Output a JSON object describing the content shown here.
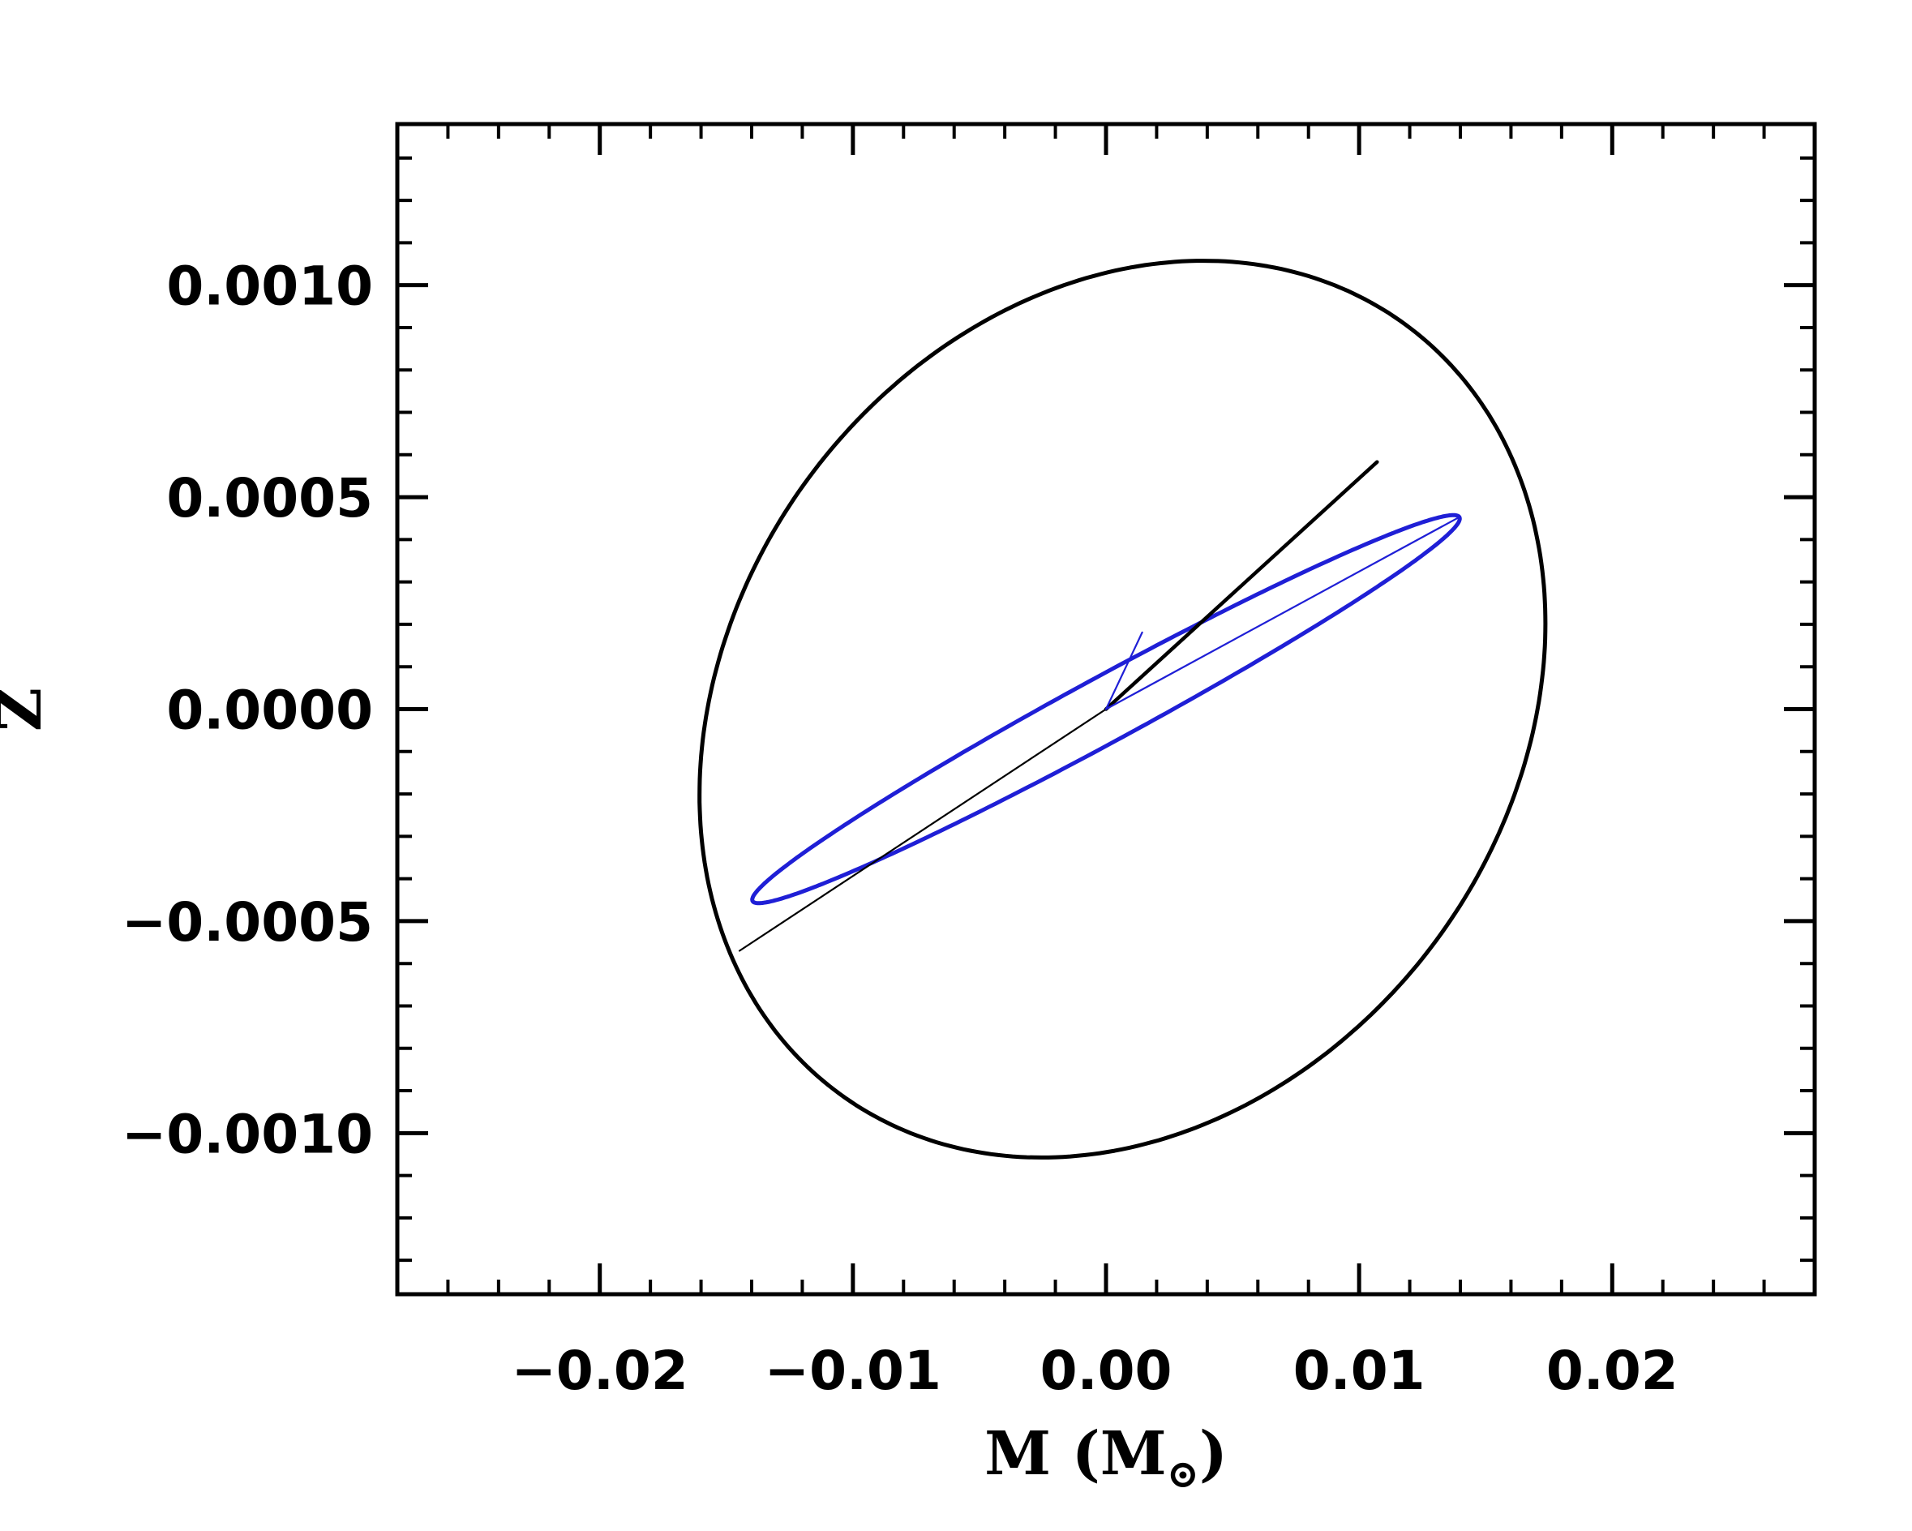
{
  "chart_data": {
    "type": "line",
    "title": "",
    "xlabel": "M (M",
    "xlabel_symbol": "⊙",
    "xlabel_close": ")",
    "ylabel": "Z",
    "xlim": [
      -0.028,
      0.028
    ],
    "ylim": [
      -0.00138,
      0.00138
    ],
    "xticks": [
      -0.02,
      -0.01,
      0.0,
      0.01,
      0.02
    ],
    "xtick_labels": [
      "−0.02",
      "−0.01",
      "0.00",
      "0.01",
      "0.02"
    ],
    "yticks": [
      0.001,
      0.0005,
      0.0,
      -0.0005,
      -0.001
    ],
    "ytick_labels": [
      "0.0010",
      "0.0005",
      "0.0000",
      "−0.0005",
      "−0.0010"
    ],
    "x_minor_step": 0.002,
    "y_minor_step": 0.0001,
    "grid": false,
    "colors": {
      "black": "#000000",
      "blue": "#1f1fd6"
    },
    "ellipses": [
      {
        "name": "",
        "color": "#000000",
        "center": [
          0.00065,
          -0.0
        ],
        "semi_major_axis_vector": [
          0.013,
          0.00081
        ],
        "semi_minor_axis_vector": [
          -0.0105,
          0.00068
        ]
      },
      {
        "name": "",
        "color": "#1f1fd6",
        "center": [
          0.0,
          0.0
        ],
        "semi_major_axis_vector": [
          0.01396,
          0.000453
        ],
        "semi_minor_axis_vector": [
          -0.00068,
          6.5e-05
        ]
      }
    ],
    "segments": [
      {
        "color": "#000000",
        "width": "thin",
        "points": [
          [
            -0.01448,
            -0.00057
          ],
          [
            0.0,
            0.0
          ]
        ]
      },
      {
        "color": "#000000",
        "width": "thick",
        "points": [
          [
            0.0,
            0.0
          ],
          [
            0.01071,
            0.000583
          ]
        ]
      },
      {
        "color": "#1f1fd6",
        "width": "thin",
        "points": [
          [
            0.0,
            0.0
          ],
          [
            0.01396,
            0.000453
          ]
        ]
      },
      {
        "color": "#1f1fd6",
        "width": "thin",
        "points": [
          [
            0.0,
            0.0
          ],
          [
            0.00143,
            0.000181
          ]
        ]
      }
    ]
  }
}
